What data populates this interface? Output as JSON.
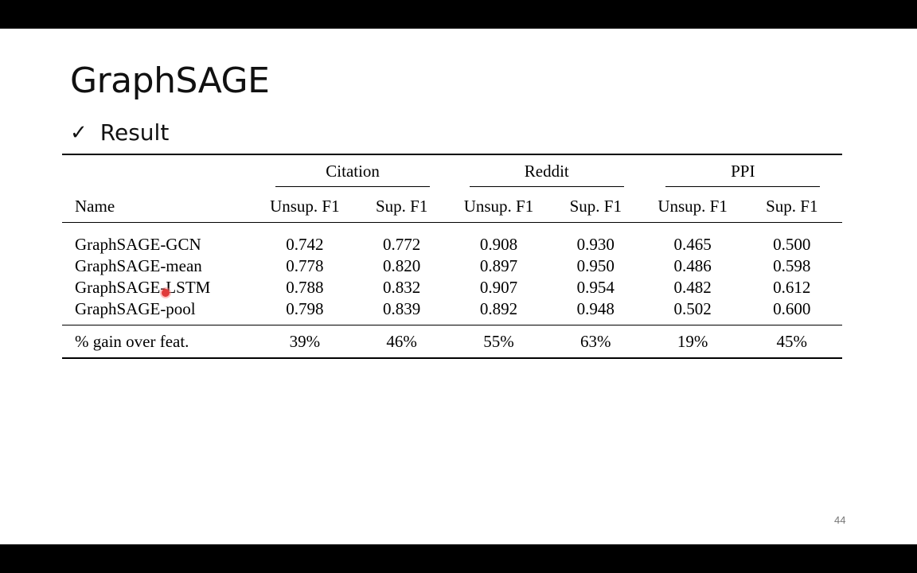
{
  "slide": {
    "title": "GraphSAGE",
    "bullet_mark": "✓",
    "bullet_text": "Result",
    "page_number": "44"
  },
  "table": {
    "name_header": "Name",
    "groups": [
      "Citation",
      "Reddit",
      "PPI"
    ],
    "subheaders": [
      "Unsup. F1",
      "Sup. F1",
      "Unsup. F1",
      "Sup. F1",
      "Unsup. F1",
      "Sup. F1"
    ],
    "rows": [
      {
        "name": "GraphSAGE-GCN",
        "values": [
          "0.742",
          "0.772",
          "0.908",
          "0.930",
          "0.465",
          "0.500"
        ],
        "bold": [
          false,
          false,
          true,
          false,
          false,
          false
        ]
      },
      {
        "name": "GraphSAGE-mean",
        "values": [
          "0.778",
          "0.820",
          "0.897",
          "0.950",
          "0.486",
          "0.598"
        ],
        "bold": [
          false,
          false,
          false,
          false,
          false,
          false
        ]
      },
      {
        "name": "GraphSAGE-LSTM",
        "values": [
          "0.788",
          "0.832",
          "0.907",
          "0.954",
          "0.482",
          "0.612"
        ],
        "bold": [
          false,
          false,
          true,
          true,
          false,
          true
        ]
      },
      {
        "name": "GraphSAGE-pool",
        "values": [
          "0.798",
          "0.839",
          "0.892",
          "0.948",
          "0.502",
          "0.600"
        ],
        "bold": [
          true,
          true,
          false,
          false,
          true,
          false
        ]
      }
    ],
    "gain_row": {
      "name": "% gain over feat.",
      "values": [
        "39%",
        "46%",
        "55%",
        "63%",
        "19%",
        "45%"
      ]
    }
  },
  "colors": {
    "slide_background": "#ffffff",
    "letterbox": "#000000",
    "pointer": "#e03a3a"
  }
}
